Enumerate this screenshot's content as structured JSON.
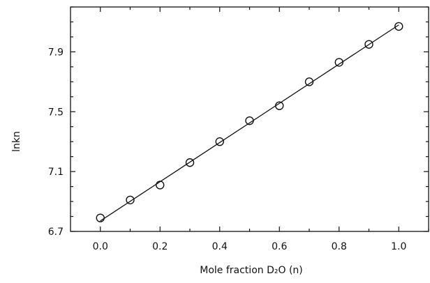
{
  "chart_data": {
    "type": "scatter",
    "title": "",
    "xlabel": "Mole fraction D₂O (n)",
    "ylabel": "lnkn",
    "xlim": [
      -0.1,
      1.1
    ],
    "ylim": [
      6.7,
      8.2
    ],
    "xticks": [
      0.0,
      0.2,
      0.4,
      0.6,
      0.8,
      1.0
    ],
    "xtick_labels": [
      "0.0",
      "0.2",
      "0.4",
      "0.6",
      "0.8",
      "1.0"
    ],
    "yticks": [
      6.7,
      7.1,
      7.5,
      7.9
    ],
    "ytick_labels": [
      "6.7",
      "7.1",
      "7.5",
      "7.9"
    ],
    "x_minor_step": 0.1,
    "y_minor_step": 0.1,
    "grid": false,
    "legend": "none",
    "marker": "open-circle",
    "series": [
      {
        "x": [
          0.0,
          0.1,
          0.2,
          0.3,
          0.4,
          0.5,
          0.6,
          0.7,
          0.8,
          0.9,
          1.0
        ],
        "y": [
          6.79,
          6.91,
          7.01,
          7.16,
          7.3,
          7.44,
          7.54,
          7.7,
          7.83,
          7.95,
          8.07
        ],
        "fit_line": {
          "x": [
            0.0,
            1.0
          ],
          "y": [
            6.77,
            8.08
          ]
        }
      }
    ]
  }
}
